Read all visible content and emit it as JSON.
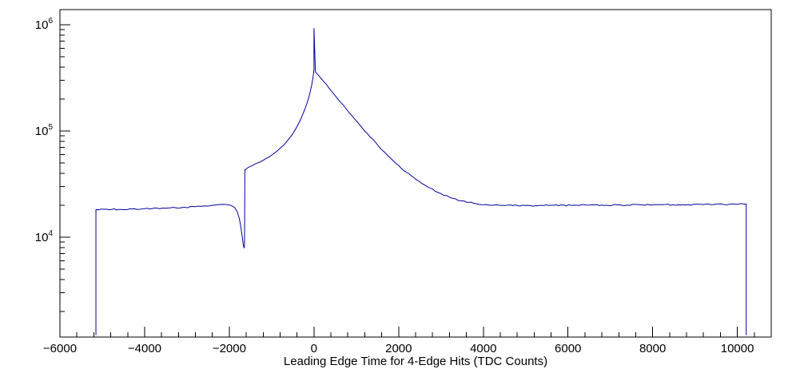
{
  "chart_data": {
    "type": "line",
    "title": "",
    "xlabel": "Leading Edge Time for 4-Edge Hits (TDC Counts)",
    "ylabel": "",
    "x_scale": "linear",
    "y_scale": "log",
    "xlim": [
      -6000,
      10800
    ],
    "ylim": [
      1150,
      1390000
    ],
    "grid": false,
    "legend": false,
    "axis_color": "#000000",
    "background_color": "#ffffff",
    "noise": 0.014,
    "x_major_ticks": [
      -6000,
      -4000,
      -2000,
      0,
      2000,
      4000,
      6000,
      8000,
      10000
    ],
    "x_tick_labels": [
      "−6000",
      "−4000",
      "−2000",
      "0",
      "2000",
      "4000",
      "6000",
      "8000",
      "10000"
    ],
    "x_minor_step": 400,
    "y_major_ticks": [
      {
        "value": 10000,
        "label_base": "10",
        "label_exp": "4"
      },
      {
        "value": 100000,
        "label_base": "10",
        "label_exp": "5"
      },
      {
        "value": 1000000,
        "label_base": "10",
        "label_exp": "6"
      }
    ],
    "series": [
      {
        "name": "leading-edge-time-4edge-hits",
        "color": "#00009b",
        "points": [
          [
            -5150,
            1200
          ],
          [
            -5150,
            18200
          ],
          [
            -4900,
            18400
          ],
          [
            -4600,
            18300
          ],
          [
            -4300,
            18500
          ],
          [
            -4000,
            18600
          ],
          [
            -3700,
            18800
          ],
          [
            -3400,
            18900
          ],
          [
            -3100,
            19100
          ],
          [
            -2800,
            19400
          ],
          [
            -2600,
            19700
          ],
          [
            -2400,
            20000
          ],
          [
            -2250,
            20300
          ],
          [
            -2150,
            20400
          ],
          [
            -2050,
            20300
          ],
          [
            -1950,
            19900
          ],
          [
            -1870,
            19000
          ],
          [
            -1810,
            17300
          ],
          [
            -1760,
            14800
          ],
          [
            -1720,
            12000
          ],
          [
            -1690,
            9800
          ],
          [
            -1665,
            8300
          ],
          [
            -1650,
            7900
          ],
          [
            -1640,
            8600
          ],
          [
            -1632,
            43000
          ],
          [
            -1550,
            45500
          ],
          [
            -1450,
            47500
          ],
          [
            -1330,
            50000
          ],
          [
            -1200,
            53000
          ],
          [
            -1060,
            57000
          ],
          [
            -920,
            62500
          ],
          [
            -780,
            70000
          ],
          [
            -640,
            80000
          ],
          [
            -510,
            93000
          ],
          [
            -400,
            110000
          ],
          [
            -310,
            130000
          ],
          [
            -230,
            155000
          ],
          [
            -160,
            185000
          ],
          [
            -105,
            220000
          ],
          [
            -60,
            262000
          ],
          [
            -25,
            315000
          ],
          [
            0,
            375000
          ],
          [
            0,
            930000
          ],
          [
            35,
            360000
          ],
          [
            120,
            330000
          ],
          [
            230,
            292000
          ],
          [
            350,
            255000
          ],
          [
            480,
            220000
          ],
          [
            620,
            188000
          ],
          [
            780,
            158000
          ],
          [
            950,
            131000
          ],
          [
            1130,
            108000
          ],
          [
            1320,
            88500
          ],
          [
            1520,
            72500
          ],
          [
            1730,
            59500
          ],
          [
            1950,
            49000
          ],
          [
            2180,
            41000
          ],
          [
            2420,
            34800
          ],
          [
            2670,
            30000
          ],
          [
            2930,
            26400
          ],
          [
            3200,
            23800
          ],
          [
            3480,
            22000
          ],
          [
            3770,
            20900
          ],
          [
            4070,
            20300
          ],
          [
            4380,
            20000
          ],
          [
            4700,
            19900
          ],
          [
            5100,
            19900
          ],
          [
            5600,
            20000
          ],
          [
            6200,
            20000
          ],
          [
            6800,
            20100
          ],
          [
            7400,
            20100
          ],
          [
            8000,
            20200
          ],
          [
            8600,
            20200
          ],
          [
            9200,
            20300
          ],
          [
            9800,
            20400
          ],
          [
            10210,
            20500
          ],
          [
            10210,
            1200
          ]
        ]
      }
    ]
  }
}
